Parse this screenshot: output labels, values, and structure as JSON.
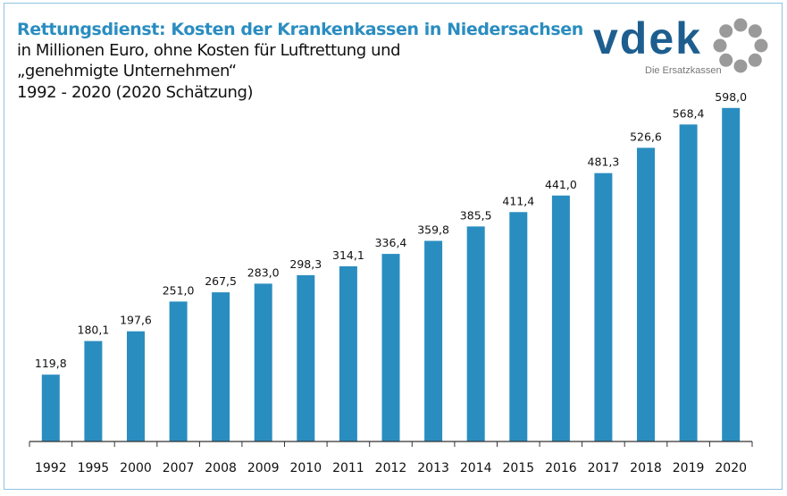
{
  "header": {
    "title": "Rettungsdienst: Kosten der Krankenkassen in Niedersachsen",
    "subtitle_line1": "in Millionen Euro, ohne Kosten für Luftrettung und",
    "subtitle_line2": "„genehmigte Unternehmen“",
    "subtitle_line3": "1992 - 2020 (2020 Schätzung)"
  },
  "logo": {
    "word": "vdek",
    "tagline": "Die Ersatzkassen"
  },
  "colors": {
    "bar": "#2a8dc0",
    "title": "#2a8dc0",
    "logo": "#1d5e8f",
    "logo_ring": "#9a9a9a"
  },
  "chart_data": {
    "type": "bar",
    "title": "Rettungsdienst: Kosten der Krankenkassen in Niedersachsen",
    "xlabel": "",
    "ylabel": "",
    "unit": "Millionen Euro",
    "ylim": [
      0,
      625
    ],
    "grid": false,
    "categories": [
      "1992",
      "1995",
      "2000",
      "2007",
      "2008",
      "2009",
      "2010",
      "2011",
      "2012",
      "2013",
      "2014",
      "2015",
      "2016",
      "2017",
      "2018",
      "2019",
      "2020"
    ],
    "values": [
      119.8,
      180.1,
      197.6,
      251.0,
      267.5,
      283.0,
      298.3,
      314.1,
      336.4,
      359.8,
      385.5,
      411.4,
      441.0,
      481.3,
      526.6,
      568.4,
      598.0
    ],
    "value_labels": [
      "119,8",
      "180,1",
      "197,6",
      "251,0",
      "267,5",
      "283,0",
      "298,3",
      "314,1",
      "336,4",
      "359,8",
      "385,5",
      "411,4",
      "441,0",
      "481,3",
      "526,6",
      "568,4",
      "598,0"
    ]
  }
}
